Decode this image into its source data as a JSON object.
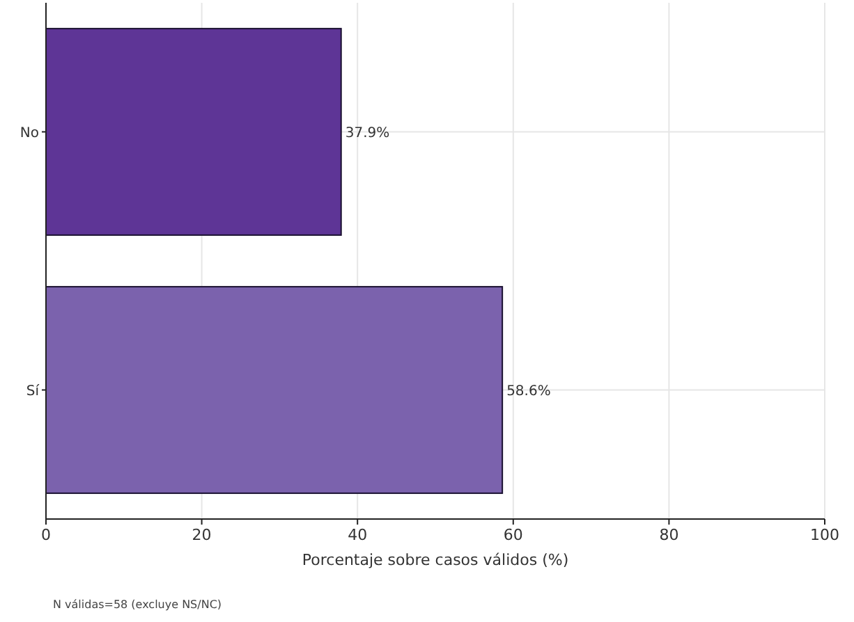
{
  "chart_data": {
    "type": "bar",
    "orientation": "horizontal",
    "categories": [
      "No",
      "Sí"
    ],
    "values": [
      37.9,
      58.6
    ],
    "colors": [
      "#5e3596",
      "#7b62ad"
    ],
    "value_labels": [
      "37.9%",
      "58.6%"
    ],
    "xlabel": "Porcentaje sobre casos válidos (%)",
    "xlim": [
      0,
      100
    ],
    "xticks": [
      0,
      20,
      40,
      60,
      80,
      100
    ],
    "grid": true,
    "annotations": [
      "N válidas=58 (excluye NS/NC)"
    ]
  }
}
